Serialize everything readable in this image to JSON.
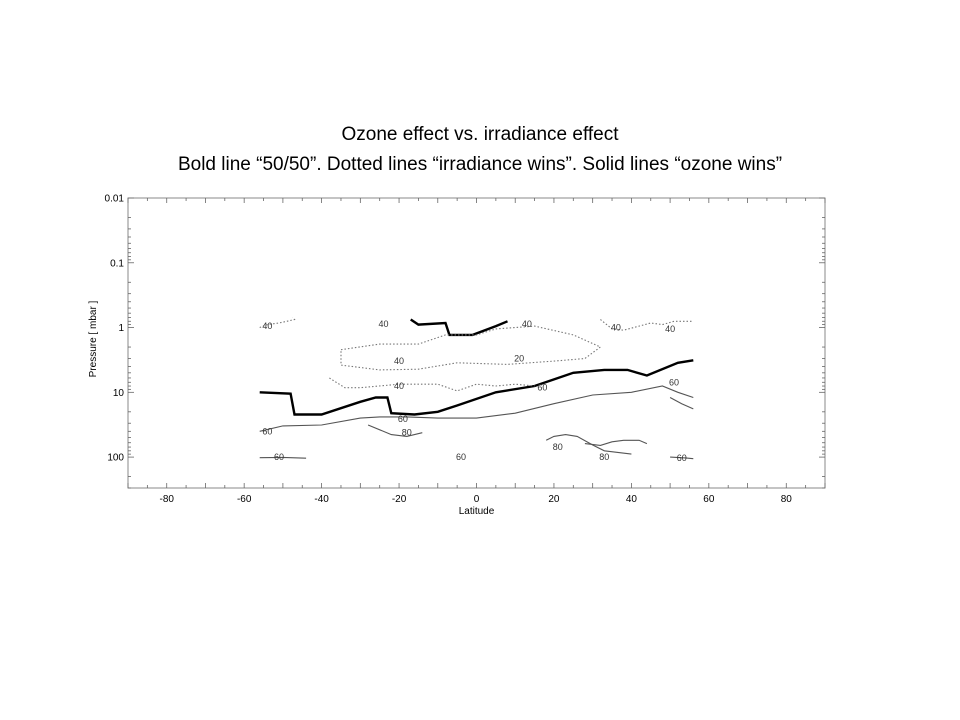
{
  "title": "Ozone effect vs. irradiance effect",
  "subtitle": "Bold line “50/50”.  Dotted lines “irradiance wins”.  Solid lines “ozone wins”",
  "chart_data": {
    "type": "line",
    "subtype": "contour",
    "xlabel": "Latitude",
    "ylabel": "Pressure [ mbar ]",
    "xlim": [
      -90,
      90
    ],
    "ylim": [
      0.01,
      300
    ],
    "yscale": "log",
    "yreversed": true,
    "xticks": [
      -80,
      -60,
      -40,
      -20,
      0,
      20,
      40,
      60,
      80
    ],
    "xtick_labels": [
      "-80",
      "-60",
      "-40",
      "-20",
      "0",
      "20",
      "40",
      "60",
      "80"
    ],
    "yticks": [
      0.01,
      0.1,
      1,
      10,
      100
    ],
    "ytick_labels": [
      "0.01",
      "0.1",
      "1",
      "10",
      "100"
    ],
    "grid": false,
    "series": [
      {
        "style": "bold",
        "x": [
          -56,
          -48,
          -47,
          -40,
          -30,
          -26,
          -23,
          -22,
          -16,
          -10,
          -5,
          5,
          15,
          25,
          33,
          39,
          44,
          52,
          56
        ],
        "y": [
          10,
          10.5,
          22,
          22,
          14,
          12,
          12,
          21,
          22,
          20,
          16,
          10,
          8,
          5,
          4.5,
          4.5,
          5.5,
          3.5,
          3.2
        ]
      },
      {
        "style": "bold",
        "x": [
          -17,
          -15,
          -8,
          -7,
          -1,
          5,
          8
        ],
        "y": [
          0.75,
          0.9,
          0.85,
          1.3,
          1.3,
          0.95,
          0.8
        ]
      },
      {
        "style": "dotted",
        "x": [
          -56,
          -54,
          -51,
          -49,
          -47,
          -47.5
        ],
        "y": [
          1.0,
          0.9,
          0.85,
          0.8,
          0.75,
          0.7
        ]
      },
      {
        "style": "dotted",
        "x": [
          -35,
          -25,
          -15,
          -8,
          0,
          5,
          15,
          25,
          32,
          28,
          20,
          8,
          -5,
          -15,
          -25,
          -35,
          -35
        ],
        "y": [
          2.2,
          1.8,
          1.8,
          1.3,
          1.3,
          1.05,
          0.95,
          1.3,
          2.0,
          3.0,
          3.3,
          3.7,
          3.5,
          4.4,
          4.5,
          3.8,
          2.2
        ]
      },
      {
        "style": "dotted",
        "x": [
          -38,
          -34,
          -30,
          -20,
          -10,
          -5,
          0,
          5,
          10,
          15
        ],
        "y": [
          6,
          8.5,
          8.5,
          7.5,
          7.5,
          9.5,
          7.5,
          8,
          7.5,
          8
        ]
      },
      {
        "style": "dotted",
        "x": [
          32,
          35,
          38,
          42,
          45,
          48,
          51,
          56
        ],
        "y": [
          0.75,
          1.05,
          1.1,
          0.95,
          0.85,
          0.9,
          0.8,
          0.8
        ]
      },
      {
        "style": "solid",
        "x": [
          -56,
          -50,
          -40,
          -30,
          -25,
          -18,
          -10,
          0,
          10,
          20,
          30,
          40,
          48,
          52,
          56
        ],
        "y": [
          40,
          33,
          32,
          25,
          24,
          24,
          25,
          25,
          21,
          15,
          11,
          10,
          8,
          10,
          12
        ]
      },
      {
        "style": "solid",
        "x": [
          50,
          53,
          56
        ],
        "y": [
          12,
          15,
          18
        ]
      },
      {
        "style": "solid",
        "x": [
          -28,
          -22,
          -18,
          -14
        ],
        "y": [
          32,
          45,
          48,
          42
        ]
      },
      {
        "style": "solid",
        "x": [
          18,
          20,
          23,
          26,
          30,
          33,
          40
        ],
        "y": [
          55,
          48,
          45,
          48,
          65,
          80,
          90
        ]
      },
      {
        "style": "solid",
        "x": [
          28,
          32,
          35,
          38,
          42,
          44
        ],
        "y": [
          62,
          66,
          58,
          55,
          55,
          62
        ]
      },
      {
        "style": "solid",
        "x": [
          -56,
          -50,
          -44
        ],
        "y": [
          102,
          101,
          104
        ]
      },
      {
        "style": "solid",
        "x": [
          50,
          54,
          56
        ],
        "y": [
          100,
          103,
          106
        ]
      }
    ],
    "contour_labels": [
      {
        "x": -54,
        "y": 0.95,
        "text": "40"
      },
      {
        "x": -24,
        "y": 0.88,
        "text": "40"
      },
      {
        "x": 13,
        "y": 0.88,
        "text": "40"
      },
      {
        "x": 36,
        "y": 1.0,
        "text": "40"
      },
      {
        "x": 50,
        "y": 1.05,
        "text": "40"
      },
      {
        "x": -20,
        "y": 3.3,
        "text": "40"
      },
      {
        "x": 11,
        "y": 3.0,
        "text": "20"
      },
      {
        "x": -20,
        "y": 8.0,
        "text": "40"
      },
      {
        "x": 17,
        "y": 8.5,
        "text": "60"
      },
      {
        "x": 51,
        "y": 7.0,
        "text": "60"
      },
      {
        "x": -19,
        "y": 26,
        "text": "60"
      },
      {
        "x": -18,
        "y": 42,
        "text": "80"
      },
      {
        "x": -54,
        "y": 40,
        "text": "60"
      },
      {
        "x": -4,
        "y": 100,
        "text": "60"
      },
      {
        "x": 21,
        "y": 70,
        "text": "80"
      },
      {
        "x": 33,
        "y": 100,
        "text": "80"
      },
      {
        "x": -51,
        "y": 100,
        "text": "60"
      },
      {
        "x": 53,
        "y": 104,
        "text": "60"
      }
    ]
  }
}
